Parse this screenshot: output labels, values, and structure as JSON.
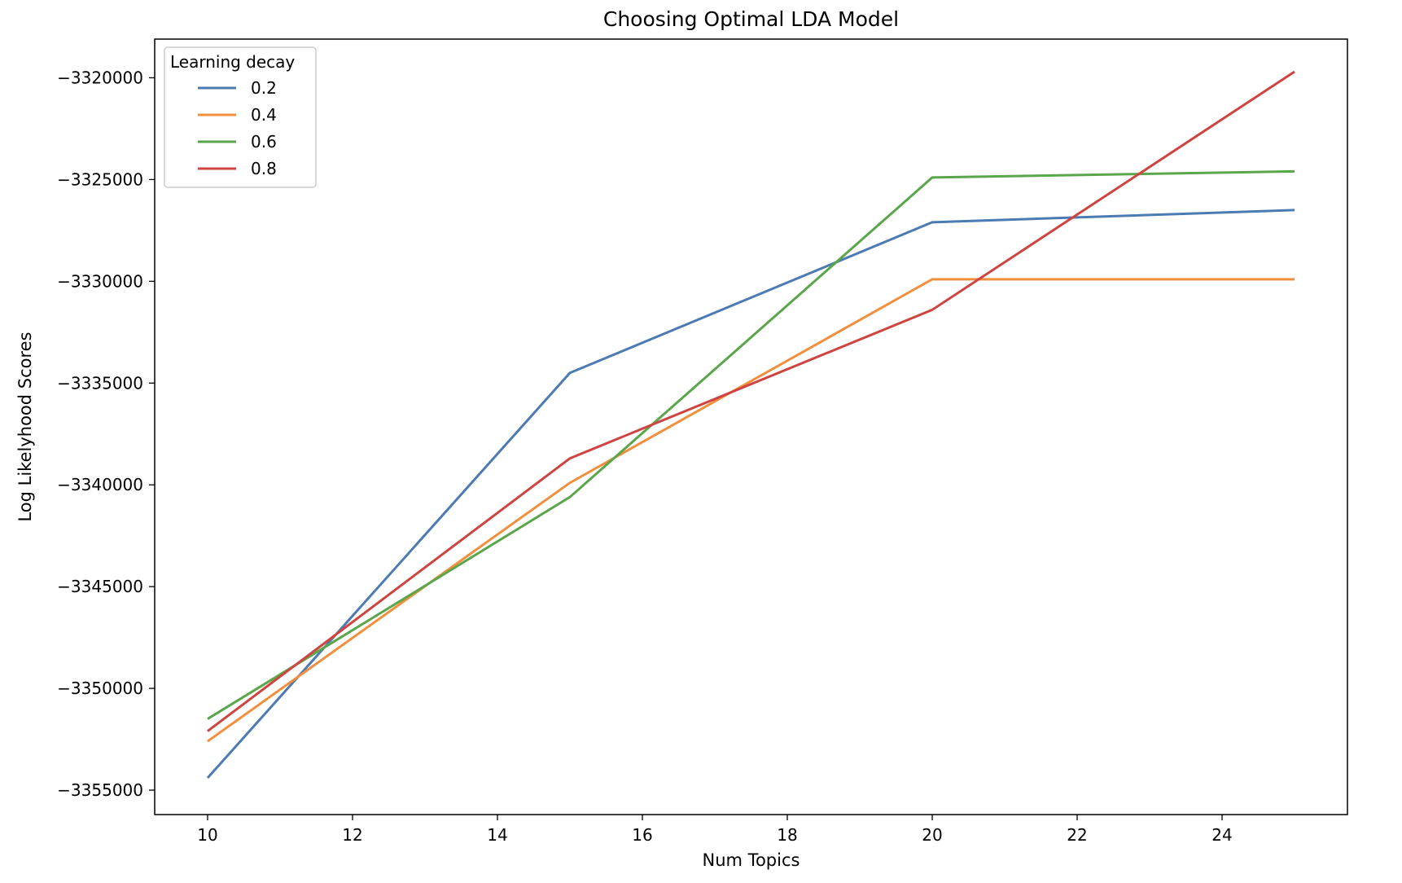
{
  "chart_data": {
    "type": "line",
    "title": "Choosing Optimal LDA Model",
    "xlabel": "Num Topics",
    "ylabel": "Log Likelyhood Scores",
    "x": [
      10,
      15,
      20,
      25
    ],
    "xlim": [
      9.27,
      25.73
    ],
    "ylim": [
      -3356200,
      -3318100
    ],
    "xticks": [
      10,
      12,
      14,
      16,
      18,
      20,
      22,
      24
    ],
    "xtick_labels": [
      "10",
      "12",
      "14",
      "16",
      "18",
      "20",
      "22",
      "24"
    ],
    "yticks": [
      -3320000,
      -3325000,
      -3330000,
      -3335000,
      -3340000,
      -3345000,
      -3350000,
      -3355000
    ],
    "ytick_labels": [
      "−3320000",
      "−3325000",
      "−3330000",
      "−3335000",
      "−3340000",
      "−3345000",
      "−3350000",
      "−3355000"
    ],
    "grid": false,
    "legend": {
      "title": "Learning decay",
      "placement": "top-left"
    },
    "series": [
      {
        "name": "0.2",
        "color": "#4c7bb3",
        "values": [
          -3354400,
          -3334500,
          -3327100,
          -3326500
        ]
      },
      {
        "name": "0.4",
        "color": "#f28f3d",
        "values": [
          -3352600,
          -3339900,
          -3329900,
          -3329900
        ]
      },
      {
        "name": "0.6",
        "color": "#5aa64b",
        "values": [
          -3351500,
          -3340600,
          -3324900,
          -3324600
        ]
      },
      {
        "name": "0.8",
        "color": "#cf4440",
        "values": [
          -3352100,
          -3338700,
          -3331400,
          -3319700
        ]
      }
    ]
  }
}
